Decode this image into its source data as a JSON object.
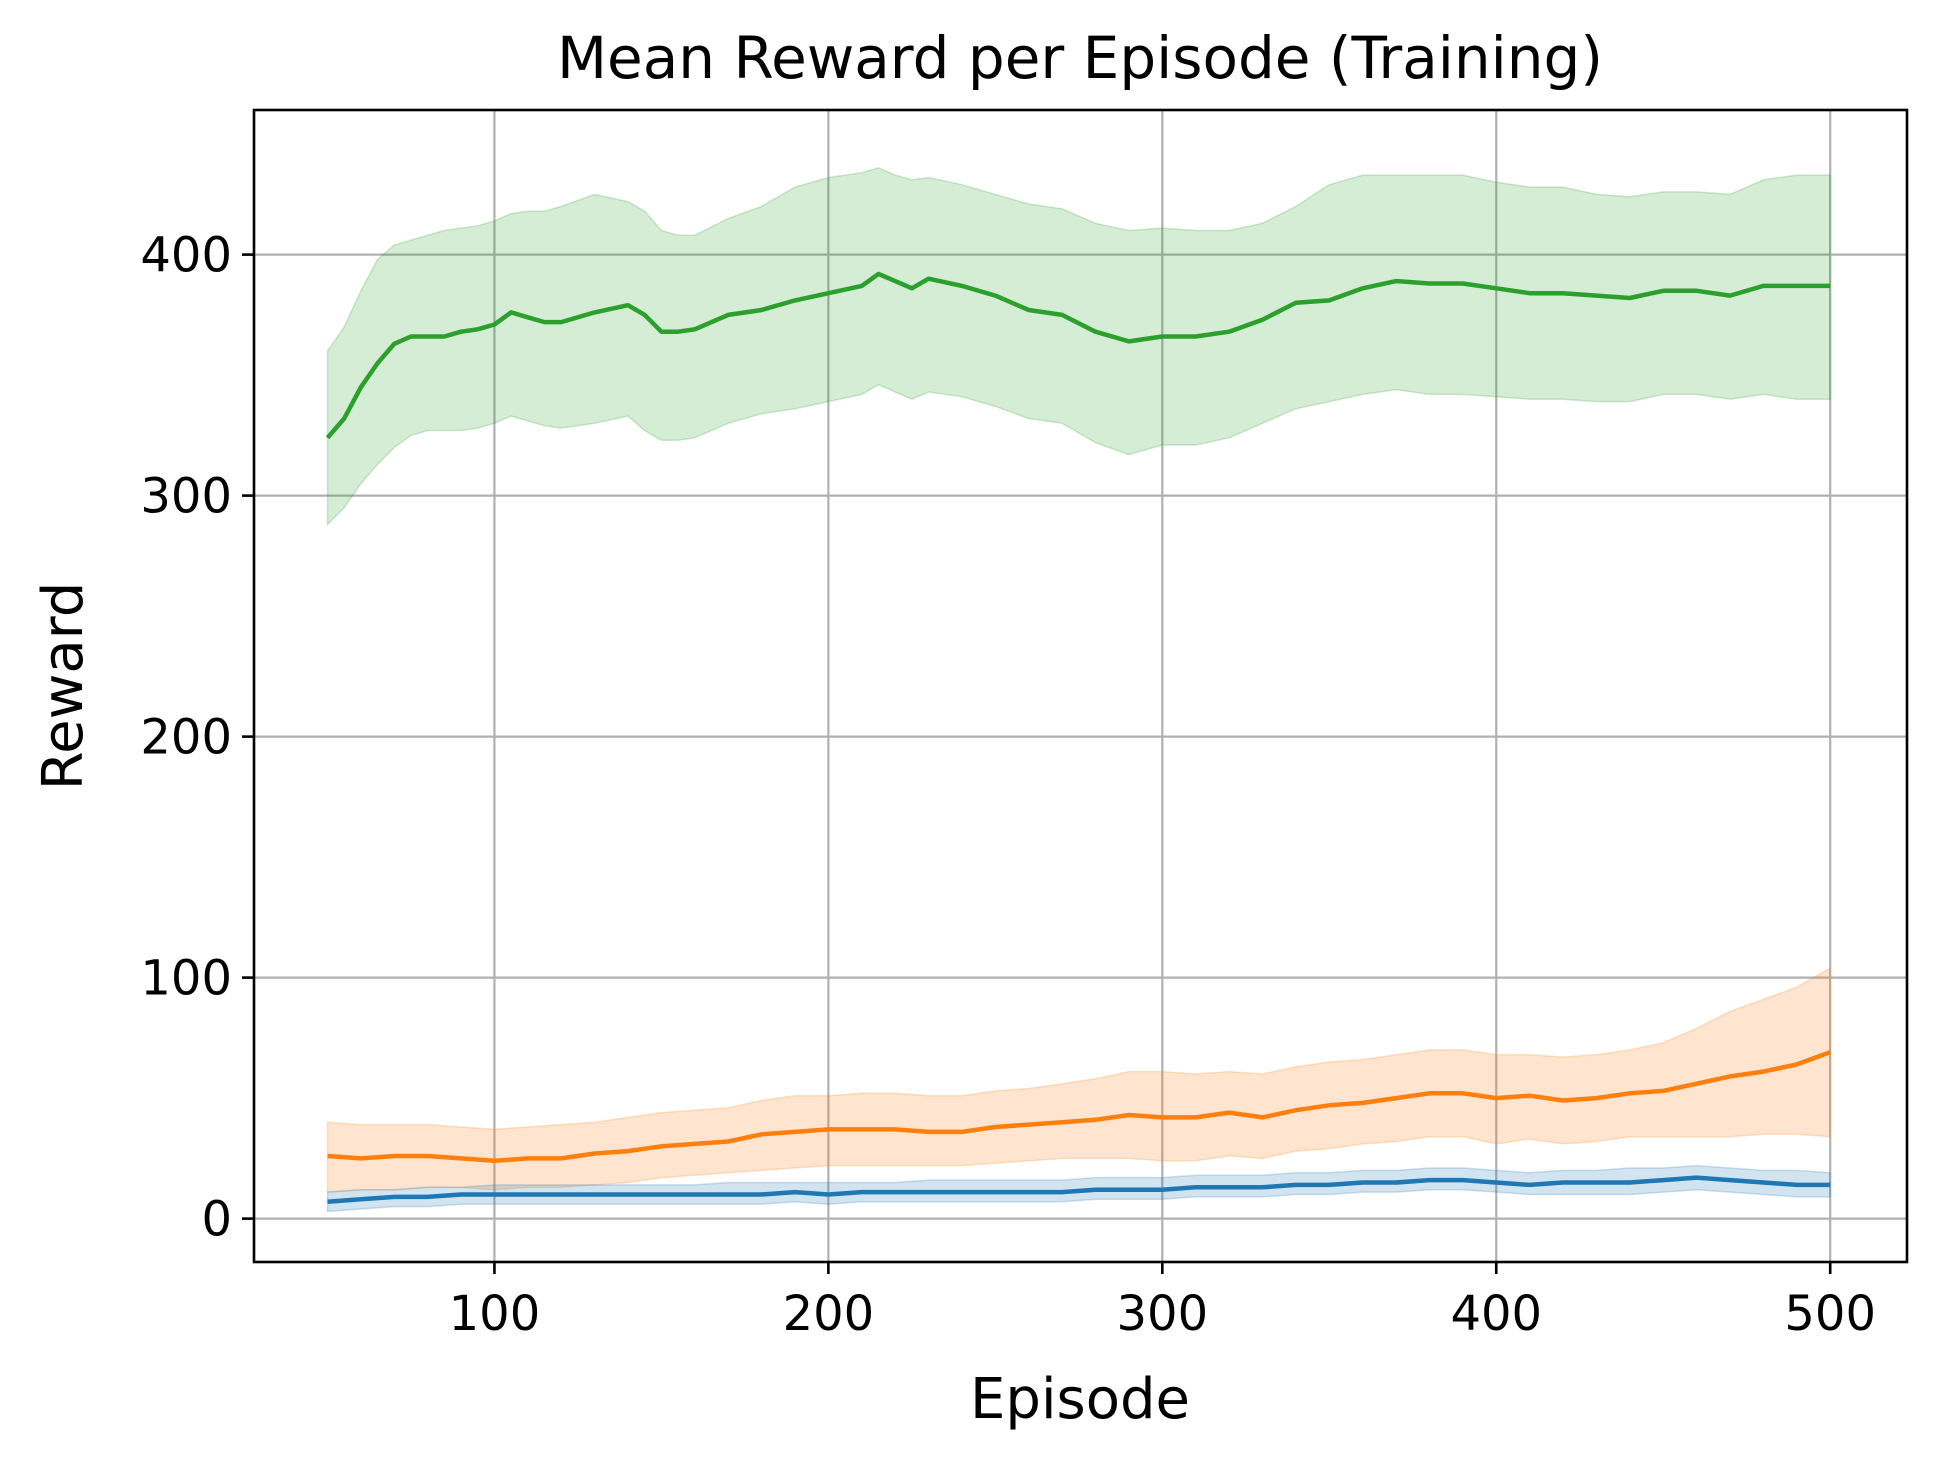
{
  "chart_data": {
    "type": "line",
    "title": "Mean Reward per Episode (Training)",
    "xlabel": "Episode",
    "ylabel": "Reward",
    "xlim": [
      28,
      523
    ],
    "ylim": [
      -18,
      460
    ],
    "x_ticks": [
      100,
      200,
      300,
      400,
      500
    ],
    "y_ticks": [
      0,
      100,
      200,
      300,
      400
    ],
    "grid": true,
    "legend": "none",
    "series": [
      {
        "color": "#2ca02c",
        "fill_color": "#2ca02c",
        "x": [
          50,
          55,
          60,
          65,
          70,
          75,
          80,
          85,
          90,
          95,
          100,
          105,
          110,
          115,
          120,
          130,
          140,
          145,
          150,
          155,
          160,
          170,
          180,
          190,
          200,
          210,
          215,
          220,
          225,
          230,
          240,
          250,
          260,
          270,
          280,
          290,
          300,
          310,
          320,
          330,
          340,
          350,
          360,
          370,
          380,
          390,
          400,
          410,
          420,
          430,
          440,
          450,
          460,
          470,
          480,
          490,
          500
        ],
        "mean": [
          324,
          332,
          345,
          355,
          363,
          366,
          366,
          366,
          368,
          369,
          371,
          376,
          374,
          372,
          372,
          376,
          379,
          375,
          368,
          368,
          369,
          375,
          377,
          381,
          384,
          387,
          392,
          389,
          386,
          390,
          387,
          383,
          377,
          375,
          368,
          364,
          366,
          366,
          368,
          373,
          380,
          381,
          386,
          389,
          388,
          388,
          386,
          384,
          384,
          383,
          382,
          385,
          385,
          383,
          387,
          387,
          387
        ],
        "upper": [
          360,
          370,
          385,
          398,
          404,
          406,
          408,
          410,
          411,
          412,
          414,
          417,
          418,
          418,
          420,
          425,
          422,
          418,
          410,
          408,
          408,
          415,
          420,
          428,
          432,
          434,
          436,
          433,
          431,
          432,
          429,
          425,
          421,
          419,
          413,
          410,
          411,
          410,
          410,
          413,
          420,
          429,
          433,
          433,
          433,
          433,
          430,
          428,
          428,
          425,
          424,
          426,
          426,
          425,
          431,
          433,
          433
        ],
        "lower": [
          288,
          295,
          305,
          313,
          320,
          325,
          327,
          327,
          327,
          328,
          330,
          333,
          331,
          329,
          328,
          330,
          333,
          327,
          323,
          323,
          324,
          330,
          334,
          336,
          339,
          342,
          346,
          343,
          340,
          343,
          341,
          337,
          332,
          330,
          322,
          317,
          321,
          321,
          324,
          330,
          336,
          339,
          342,
          344,
          342,
          342,
          341,
          340,
          340,
          339,
          339,
          342,
          342,
          340,
          342,
          340,
          340
        ]
      },
      {
        "color": "#ff7f0e",
        "fill_color": "#ff7f0e",
        "x": [
          50,
          60,
          70,
          80,
          90,
          100,
          110,
          120,
          130,
          140,
          150,
          160,
          170,
          180,
          190,
          200,
          210,
          220,
          230,
          240,
          250,
          260,
          270,
          280,
          290,
          300,
          310,
          320,
          330,
          340,
          350,
          360,
          370,
          380,
          390,
          400,
          410,
          420,
          430,
          440,
          450,
          460,
          470,
          480,
          490,
          500
        ],
        "mean": [
          26,
          25,
          26,
          26,
          25,
          24,
          25,
          25,
          27,
          28,
          30,
          31,
          32,
          35,
          36,
          37,
          37,
          37,
          36,
          36,
          38,
          39,
          40,
          41,
          43,
          42,
          42,
          44,
          42,
          45,
          47,
          48,
          50,
          52,
          52,
          50,
          51,
          49,
          50,
          52,
          53,
          56,
          59,
          61,
          64,
          69
        ],
        "upper": [
          40,
          39,
          39,
          39,
          38,
          37,
          38,
          39,
          40,
          42,
          44,
          45,
          46,
          49,
          51,
          51,
          52,
          52,
          51,
          51,
          53,
          54,
          56,
          58,
          61,
          61,
          60,
          61,
          60,
          63,
          65,
          66,
          68,
          70,
          70,
          68,
          68,
          67,
          68,
          70,
          73,
          79,
          86,
          91,
          96,
          104
        ],
        "lower": [
          11,
          12,
          12,
          13,
          13,
          12,
          13,
          13,
          14,
          15,
          17,
          18,
          19,
          20,
          21,
          22,
          22,
          22,
          22,
          22,
          23,
          24,
          25,
          25,
          25,
          24,
          24,
          26,
          25,
          28,
          29,
          31,
          32,
          34,
          34,
          31,
          33,
          31,
          32,
          34,
          34,
          34,
          34,
          35,
          35,
          34
        ]
      },
      {
        "color": "#1f77b4",
        "fill_color": "#1f77b4",
        "x": [
          50,
          60,
          70,
          80,
          90,
          100,
          110,
          120,
          130,
          140,
          150,
          160,
          170,
          180,
          190,
          200,
          210,
          220,
          230,
          240,
          250,
          260,
          270,
          280,
          290,
          300,
          310,
          320,
          330,
          340,
          350,
          360,
          370,
          380,
          390,
          400,
          410,
          420,
          430,
          440,
          450,
          460,
          470,
          480,
          490,
          500
        ],
        "mean": [
          7,
          8,
          9,
          9,
          10,
          10,
          10,
          10,
          10,
          10,
          10,
          10,
          10,
          10,
          11,
          10,
          11,
          11,
          11,
          11,
          11,
          11,
          11,
          12,
          12,
          12,
          13,
          13,
          13,
          14,
          14,
          15,
          15,
          16,
          16,
          15,
          14,
          15,
          15,
          15,
          16,
          17,
          16,
          15,
          14,
          14
        ],
        "upper": [
          11,
          12,
          12,
          13,
          13,
          14,
          14,
          14,
          14,
          14,
          14,
          14,
          15,
          15,
          15,
          15,
          15,
          15,
          16,
          16,
          16,
          16,
          16,
          17,
          17,
          17,
          18,
          18,
          18,
          19,
          19,
          20,
          20,
          21,
          21,
          20,
          19,
          20,
          20,
          21,
          21,
          22,
          21,
          20,
          20,
          19
        ],
        "lower": [
          3,
          4,
          5,
          5,
          6,
          6,
          6,
          6,
          6,
          6,
          6,
          6,
          6,
          6,
          7,
          6,
          7,
          7,
          7,
          7,
          7,
          7,
          7,
          8,
          8,
          8,
          9,
          9,
          9,
          10,
          10,
          11,
          11,
          12,
          12,
          11,
          10,
          10,
          10,
          10,
          11,
          12,
          11,
          10,
          9,
          9
        ]
      }
    ]
  }
}
